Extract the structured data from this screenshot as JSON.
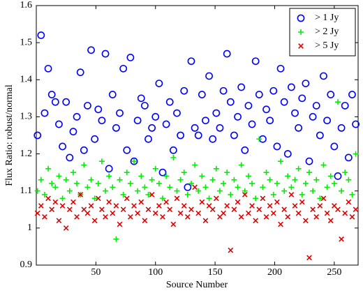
{
  "chart_data": {
    "type": "scatter",
    "x_label": "Source Number",
    "y_label": "Flux Ratio: robust/normal",
    "xlim": [
      0,
      270
    ],
    "xticks": [
      50,
      100,
      150,
      200,
      250
    ],
    "ylim": [
      0.9,
      1.6
    ],
    "yticks": [
      0.9,
      1,
      1.1,
      1.2,
      1.3,
      1.4,
      1.5,
      1.6
    ],
    "legend": "upper right",
    "x": [
      1,
      4,
      7,
      10,
      13,
      16,
      19,
      22,
      25,
      28,
      31,
      34,
      37,
      40,
      43,
      46,
      49,
      52,
      55,
      58,
      61,
      64,
      67,
      70,
      73,
      76,
      79,
      82,
      85,
      88,
      91,
      94,
      97,
      100,
      103,
      106,
      109,
      112,
      115,
      118,
      121,
      124,
      127,
      130,
      133,
      136,
      139,
      142,
      145,
      148,
      151,
      154,
      157,
      160,
      163,
      166,
      169,
      172,
      175,
      178,
      181,
      184,
      187,
      190,
      193,
      196,
      199,
      202,
      205,
      208,
      211,
      214,
      217,
      220,
      223,
      226,
      229,
      232,
      235,
      238,
      241,
      244,
      247,
      250,
      253,
      256,
      259,
      262,
      265,
      268
    ],
    "series": [
      {
        "name": "> 1 Jy",
        "color": "#0000ff",
        "marker": "o",
        "values": [
          1.25,
          1.52,
          1.31,
          1.43,
          1.36,
          1.34,
          1.28,
          1.22,
          1.34,
          1.19,
          1.26,
          1.3,
          1.42,
          1.21,
          1.33,
          1.48,
          1.24,
          1.32,
          1.29,
          1.47,
          1.16,
          1.36,
          1.27,
          1.31,
          1.43,
          1.21,
          1.46,
          1.18,
          1.29,
          1.35,
          1.33,
          1.24,
          1.27,
          1.3,
          1.39,
          1.15,
          1.28,
          1.34,
          1.21,
          1.31,
          1.25,
          1.37,
          1.11,
          1.45,
          1.27,
          1.25,
          1.36,
          1.29,
          1.41,
          1.24,
          1.31,
          1.27,
          1.37,
          1.47,
          1.34,
          1.25,
          1.3,
          1.38,
          1.21,
          1.33,
          1.28,
          1.45,
          1.36,
          1.24,
          1.32,
          1.29,
          1.37,
          1.22,
          1.43,
          1.34,
          1.2,
          1.38,
          1.31,
          1.27,
          1.35,
          1.39,
          1.18,
          1.3,
          1.33,
          1.25,
          1.41,
          1.29,
          1.36,
          1.22,
          1.14,
          1.27,
          1.33,
          1.19,
          1.36,
          1.28
        ]
      },
      {
        "name": "> 2 Jy",
        "color": "#00ee00",
        "marker": "+",
        "values": [
          1.1,
          1.13,
          1.09,
          1.16,
          1.12,
          1.11,
          1.14,
          1.08,
          1.13,
          1.1,
          1.15,
          1.12,
          1.09,
          1.17,
          1.11,
          1.13,
          1.08,
          1.12,
          1.18,
          1.1,
          1.14,
          1.11,
          0.97,
          1.13,
          1.09,
          1.15,
          1.12,
          1.18,
          1.1,
          1.14,
          1.11,
          1.09,
          1.13,
          1.16,
          1.12,
          1.08,
          1.14,
          1.11,
          1.19,
          1.1,
          1.13,
          1.15,
          1.09,
          1.12,
          1.17,
          1.1,
          1.14,
          1.11,
          1.08,
          1.13,
          1.16,
          1.1,
          1.12,
          1.15,
          1.09,
          1.13,
          1.11,
          1.17,
          1.1,
          1.14,
          1.12,
          1.08,
          1.24,
          1.11,
          1.15,
          1.13,
          1.09,
          1.12,
          1.18,
          1.1,
          1.14,
          1.11,
          1.13,
          1.16,
          1.09,
          1.12,
          1.15,
          1.1,
          1.13,
          1.08,
          1.17,
          1.11,
          1.14,
          1.12,
          1.34,
          1.1,
          1.15,
          1.13,
          1.09,
          1.2
        ]
      },
      {
        "name": "> 5 Jy",
        "color": "#e00000",
        "marker": "x",
        "values": [
          1.04,
          1.06,
          1.03,
          1.08,
          1.05,
          1.07,
          1.02,
          1.06,
          1.0,
          1.05,
          1.07,
          1.03,
          1.09,
          1.05,
          1.04,
          1.06,
          1.02,
          1.08,
          1.05,
          1.03,
          1.07,
          1.04,
          1.06,
          1.01,
          1.05,
          1.08,
          1.03,
          1.06,
          1.04,
          1.07,
          1.02,
          1.05,
          1.09,
          1.04,
          1.06,
          1.03,
          1.07,
          1.05,
          1.01,
          1.08,
          1.04,
          1.06,
          1.03,
          1.05,
          1.11,
          1.04,
          1.07,
          1.02,
          1.06,
          1.05,
          1.08,
          1.03,
          1.04,
          1.06,
          0.94,
          1.05,
          1.07,
          1.03,
          1.09,
          1.04,
          1.06,
          1.02,
          1.05,
          1.08,
          1.03,
          1.06,
          1.04,
          1.07,
          1.01,
          1.05,
          1.03,
          1.09,
          1.06,
          1.04,
          1.07,
          1.02,
          0.92,
          1.05,
          1.03,
          1.06,
          1.08,
          1.04,
          1.02,
          1.06,
          1.05,
          0.97,
          1.04,
          1.07,
          1.03,
          1.05
        ]
      }
    ]
  }
}
